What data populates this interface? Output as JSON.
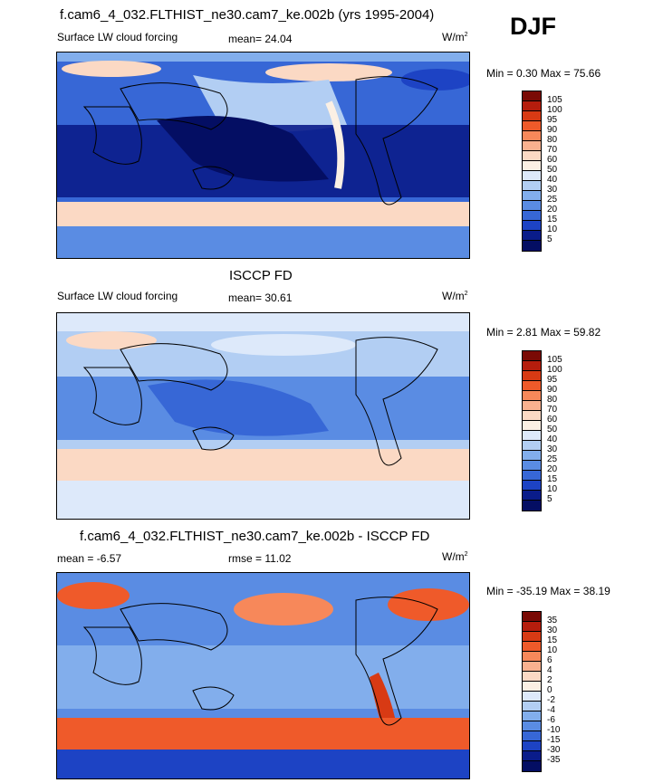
{
  "season_label": "DJF",
  "panels": [
    {
      "title": "f.cam6_4_032.FLTHIST_ne30.cam7_ke.002b (yrs 1995-2004)",
      "left_label": "Surface LW cloud forcing",
      "center_label": "mean=  24.04",
      "units": "W/m",
      "units_sup": "2",
      "min_label": "Min =",
      "min_value": "0.30",
      "max_label": "Max =",
      "max_value": "75.66",
      "colorbar_labels": [
        "105",
        "100",
        "95",
        "90",
        "80",
        "70",
        "60",
        "50",
        "40",
        "30",
        "25",
        "20",
        "15",
        "10",
        "5"
      ]
    },
    {
      "title": "ISCCP FD",
      "left_label": "Surface LW cloud forcing",
      "center_label": "mean=  30.61",
      "units": "W/m",
      "units_sup": "2",
      "min_label": "Min =",
      "min_value": "2.81",
      "max_label": "Max =",
      "max_value": "59.82",
      "colorbar_labels": [
        "105",
        "100",
        "95",
        "90",
        "80",
        "70",
        "60",
        "50",
        "40",
        "30",
        "25",
        "20",
        "15",
        "10",
        "5"
      ]
    },
    {
      "title": "f.cam6_4_032.FLTHIST_ne30.cam7_ke.002b - ISCCP FD",
      "left_label": "mean =  -6.57",
      "center_label": "rmse =  11.02",
      "units": "W/m",
      "units_sup": "2",
      "min_label": "Min =",
      "min_value": "-35.19",
      "max_label": "Max =",
      "max_value": "38.19",
      "colorbar_labels": [
        "35",
        "30",
        "15",
        "10",
        "6",
        "4",
        "2",
        "0",
        "-2",
        "-4",
        "-6",
        "-10",
        "-15",
        "-30",
        "-35"
      ]
    }
  ],
  "colors": {
    "abs_scale": [
      "#7a0a05",
      "#b51d0d",
      "#d83a14",
      "#ef5a2a",
      "#f7885a",
      "#f9b18f",
      "#fbd9c4",
      "#fbf0e4",
      "#dde9fa",
      "#b2cef3",
      "#82aeec",
      "#5a8ce3",
      "#3767d6",
      "#1d43c4",
      "#0a1c8a",
      "#040e63"
    ],
    "diff_scale": [
      "#7a0a05",
      "#b51d0d",
      "#d83a14",
      "#ef5a2a",
      "#f7885a",
      "#f9b18f",
      "#fbd9c4",
      "#fbf0e4",
      "#dde9fa",
      "#b2cef3",
      "#82aeec",
      "#5a8ce3",
      "#3767d6",
      "#1d43c4",
      "#0a1c8a",
      "#040e63"
    ]
  }
}
